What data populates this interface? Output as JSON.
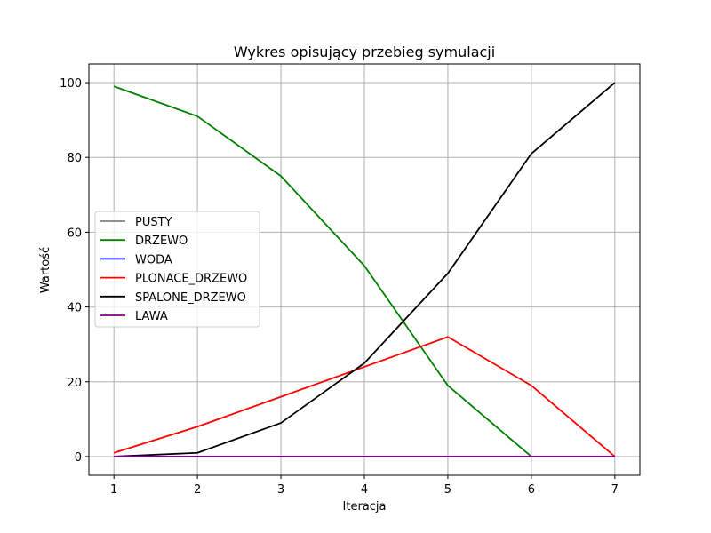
{
  "chart_data": {
    "type": "line",
    "title": "Wykres opisujący przebieg symulacji",
    "xlabel": "Iteracja",
    "ylabel": "Wartość",
    "x": [
      1,
      2,
      3,
      4,
      5,
      6,
      7
    ],
    "xticks": [
      1,
      2,
      3,
      4,
      5,
      6,
      7
    ],
    "yticks": [
      0,
      20,
      40,
      60,
      80,
      100
    ],
    "xlim": [
      0.7,
      7.3
    ],
    "ylim": [
      -5,
      105
    ],
    "grid": true,
    "legend_position": "center-left",
    "series": [
      {
        "name": "PUSTY",
        "color": "#808080",
        "values": [
          0,
          0,
          0,
          0,
          0,
          0,
          0
        ]
      },
      {
        "name": "DRZEWO",
        "color": "#008000",
        "values": [
          99,
          91,
          75,
          51,
          19,
          0,
          null
        ]
      },
      {
        "name": "WODA",
        "color": "#0000ff",
        "values": [
          0,
          0,
          0,
          0,
          0,
          0,
          0
        ]
      },
      {
        "name": "PLONACE_DRZEWO",
        "color": "#ff0000",
        "values": [
          1,
          8,
          16,
          24,
          32,
          19,
          0
        ]
      },
      {
        "name": "SPALONE_DRZEWO",
        "color": "#000000",
        "values": [
          0,
          1,
          9,
          25,
          49,
          81,
          100
        ]
      },
      {
        "name": "LAWA",
        "color": "#800080",
        "values": [
          0,
          0,
          0,
          0,
          0,
          0,
          0
        ]
      }
    ]
  }
}
